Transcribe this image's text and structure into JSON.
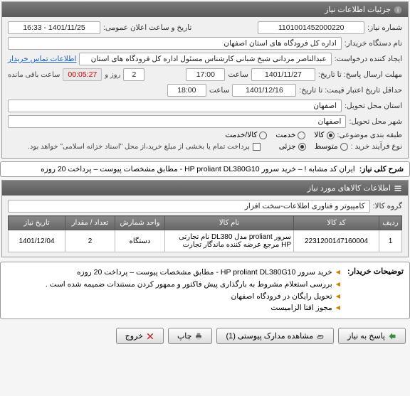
{
  "colors": {
    "header_bg_top": "#7a7a7a",
    "header_bg_bottom": "#5a5a5a",
    "header_text": "#ffffff",
    "field_bg": "#ffffff",
    "field_border": "#aaaaaa",
    "link": "#1a5fb4",
    "countdown_text": "#cc0000",
    "table_header_top": "#888888",
    "table_header_bottom": "#666666",
    "bullet": "#d08000"
  },
  "main": {
    "title": "جزئیات اطلاعات نیاز",
    "need_number_label": "شماره نیاز:",
    "need_number": "1101001452000220",
    "announce_label": "تاریخ و ساعت اعلان عمومی:",
    "announce_value": "1401/11/25 - 16:33",
    "buyer_label": "نام دستگاه خریدار:",
    "buyer_value": "اداره کل فرودگاه های استان اصفهان",
    "requester_label": "ایجاد کننده درخواست:",
    "requester_value": "عبدالناصر مردانی شیخ شبانی کارشناس مسئول  اداره کل فرودگاه های استان",
    "contact_link": "اطلاعات تماس خریدار",
    "deadline_label": "مهلت ارسال پاسخ: تا تاریخ:",
    "deadline_date": "1401/11/27",
    "time_label": "ساعت",
    "deadline_time": "17:00",
    "day_label": "روز و",
    "days_left": "2",
    "countdown": "00:05:27",
    "remaining_label": "ساعت باقی مانده",
    "validity_label": "حداقل تاریخ اعتبار قیمت: تا تاریخ:",
    "validity_date": "1401/12/16",
    "validity_time": "18:00",
    "delivery_province_label": "استان محل تحویل:",
    "delivery_province": "اصفهان",
    "delivery_city_label": "شهر محل تحویل:",
    "delivery_city": "اصفهان",
    "topic_class_label": "طبقه بندی موضوعی:",
    "radio_goods": "کالا",
    "radio_service": "خدمت",
    "radio_both": "کالا/خدمت",
    "purchase_type_label": "نوع فرآیند خرید :",
    "purchase_type_medium": "متوسط",
    "purchase_type_partial": "جزئی",
    "partial_payment_note": "پرداخت تمام یا بخشی از مبلغ خرید،از محل \"اسناد خزانه اسلامی\" خواهد بود."
  },
  "need_desc": {
    "label": "شرح کلی نیاز:",
    "text": "ایران کد مشابه ! – خرید سرور  HP proliant DL380G10 - مطابق  مشخصات پیوست – پرداخت 20 روزه"
  },
  "items": {
    "title": "اطلاعات کالاهای مورد نیاز",
    "group_label": "گروه کالا:",
    "group_value": "کامپیوتر و فناوری اطلاعات-سخت افزار",
    "columns": [
      "ردیف",
      "کد کالا",
      "نام کالا",
      "واحد شمارش",
      "تعداد / مقدار",
      "تاریخ نیاز"
    ],
    "rows": [
      [
        "1",
        "2231200147160004",
        "سرور proliant مدل DL380 نام تجارتی HP مرجع عرضه کننده ماندگار تجارت",
        "دستگاه",
        "2",
        "1401/12/04"
      ]
    ],
    "col_widths": [
      "32px",
      "120px",
      "auto",
      "70px",
      "70px",
      "80px"
    ]
  },
  "buyer_notes": {
    "label": "توضیحات خریدار:",
    "lines": [
      "خرید سرور  HP proliant DL380G10 - مطابق  مشخصات پیوست – پرداخت 20 روزه",
      "بررسی استعلام مشروط  به بارگذاری پیش فاکتور و ممهور کردن مستندات ضمیمه شده است .",
      "تحویل رایگان در فرودگاه اصفهان",
      "مجوز افتا الزامیست"
    ]
  },
  "buttons": {
    "reply": "پاسخ به نیاز",
    "attachments": "مشاهده مدارک پیوستی (1)",
    "print": "چاپ",
    "exit": "خروج"
  }
}
